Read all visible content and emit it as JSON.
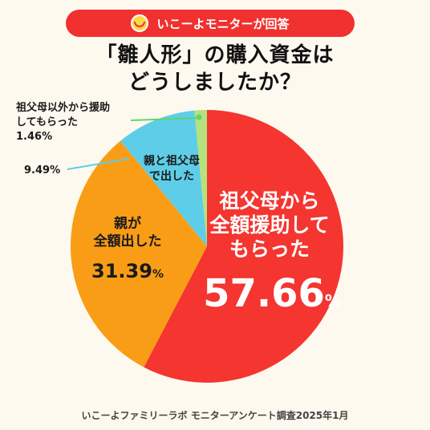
{
  "banner": {
    "text": "いこーよモニターが回答",
    "logo": "smile-face-logo"
  },
  "title_line1": "「雛人形」の購入資金は",
  "title_line2": "どうしましたか？",
  "footer": "いこーよファミリーラボ モニターアンケート調査2025年1月",
  "chart_data": {
    "type": "pie",
    "title": "「雛人形」の購入資金はどうしましたか？",
    "slices": [
      {
        "label": "祖父母から全額援助してもらった",
        "value": 57.66,
        "color": "#f43530"
      },
      {
        "label": "親が全額出した",
        "value": 31.39,
        "color": "#f99d16"
      },
      {
        "label": "親と祖父母で出した",
        "value": 9.49,
        "color": "#5ecde8"
      },
      {
        "label": "祖父母以外から援助してもらった",
        "value": 1.46,
        "color": "#b5e27c"
      }
    ]
  },
  "labels": {
    "red_l1": "祖父母から",
    "red_l2": "全額援助して",
    "red_l3": "もらった",
    "red_pct": "57.66",
    "orange_l1": "親が",
    "orange_l2": "全額出した",
    "orange_pct": "31.39",
    "blue_l1": "親と祖父母",
    "blue_l2": "で出した",
    "blue_pct": "9.49%",
    "green_l1": "祖父母以外から援助",
    "green_l2": "してもらった",
    "green_pct": "1.46%",
    "pct_sign": "%"
  }
}
